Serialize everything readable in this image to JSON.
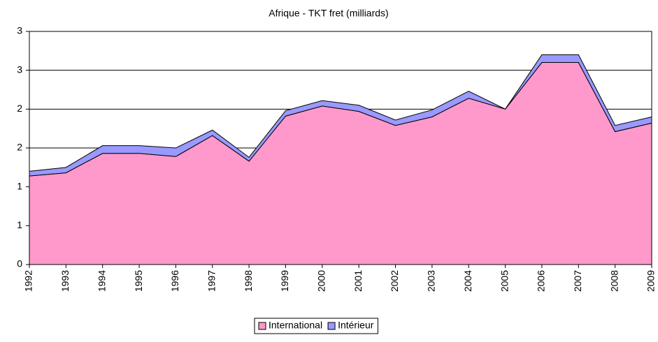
{
  "chart_data": {
    "type": "stacked_area",
    "title": "Afrique - TKT fret (milliards)",
    "categories": [
      "1992",
      "1993",
      "1994",
      "1995",
      "1996",
      "1997",
      "1998",
      "1999",
      "2000",
      "2001",
      "2002",
      "2003",
      "2004",
      "2005",
      "2006",
      "2007",
      "2008",
      "2009"
    ],
    "series": [
      {
        "name": "International",
        "color": "#ff99cc",
        "values": [
          1.14,
          1.18,
          1.43,
          1.43,
          1.39,
          1.66,
          1.33,
          1.91,
          2.04,
          1.97,
          1.79,
          1.9,
          2.14,
          2.0,
          2.6,
          2.6,
          1.71,
          1.82
        ]
      },
      {
        "name": "Intérieur",
        "color": "#9999ff",
        "values": [
          0.06,
          0.07,
          0.1,
          0.1,
          0.11,
          0.07,
          0.05,
          0.07,
          0.07,
          0.08,
          0.07,
          0.09,
          0.09,
          0.0,
          0.1,
          0.1,
          0.08,
          0.08
        ]
      }
    ],
    "ylim": [
      0,
      3
    ],
    "yticks": [
      0,
      {
        "value": 0.5,
        "label": "1"
      },
      1,
      {
        "value": 1.5,
        "label": "2"
      },
      2,
      {
        "value": 2.5,
        "label": "3"
      },
      3
    ],
    "grid": true,
    "legend": "bottom"
  }
}
